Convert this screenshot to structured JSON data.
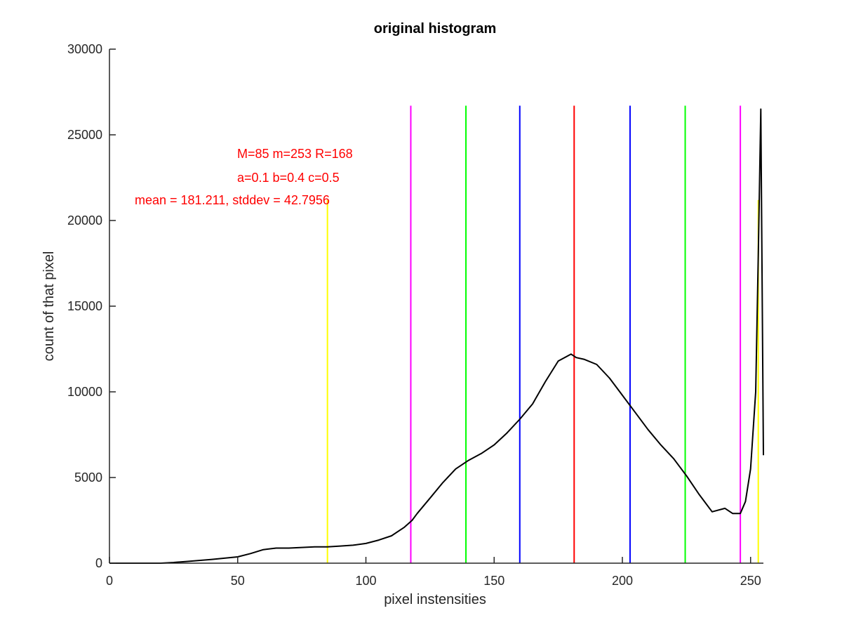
{
  "chart_data": {
    "type": "line",
    "title": "original histogram",
    "xlabel": "pixel instensities",
    "ylabel": "count of that pixel",
    "xlim": [
      0,
      255
    ],
    "ylim": [
      0,
      30000
    ],
    "xticks": [
      0,
      50,
      100,
      150,
      200,
      250
    ],
    "yticks": [
      0,
      5000,
      10000,
      15000,
      20000,
      25000,
      30000
    ],
    "grid": false,
    "series": [
      {
        "color": "#000000",
        "x": [
          0,
          10,
          20,
          25,
          30,
          40,
          50,
          55,
          60,
          65,
          70,
          75,
          80,
          85,
          90,
          95,
          100,
          105,
          110,
          115,
          118,
          120,
          125,
          130,
          135,
          140,
          145,
          150,
          155,
          160,
          165,
          170,
          175,
          180,
          182,
          185,
          190,
          195,
          200,
          205,
          210,
          215,
          220,
          225,
          230,
          235,
          240,
          243,
          246,
          248,
          250,
          252,
          253,
          254,
          255
        ],
        "y": [
          0,
          0,
          0,
          40,
          100,
          220,
          370,
          560,
          790,
          880,
          880,
          920,
          950,
          950,
          1000,
          1050,
          1150,
          1350,
          1600,
          2100,
          2500,
          2900,
          3800,
          4700,
          5500,
          6000,
          6400,
          6900,
          7600,
          8400,
          9300,
          10600,
          11800,
          12200,
          12000,
          11900,
          11600,
          10800,
          9800,
          8800,
          7800,
          6900,
          6100,
          5100,
          4000,
          3000,
          3200,
          2900,
          2900,
          3600,
          5500,
          10000,
          18000,
          26500,
          6300
        ]
      }
    ],
    "vlines": [
      {
        "x": 85,
        "ymax": 21200,
        "color": "#ffff00"
      },
      {
        "x": 117.5,
        "ymax": 26700,
        "color": "#ff00ff"
      },
      {
        "x": 139,
        "ymax": 26700,
        "color": "#00ff00"
      },
      {
        "x": 160,
        "ymax": 26700,
        "color": "#0000ff"
      },
      {
        "x": 181.2,
        "ymax": 26700,
        "color": "#ff0000"
      },
      {
        "x": 203,
        "ymax": 26700,
        "color": "#0000ff"
      },
      {
        "x": 224.5,
        "ymax": 26700,
        "color": "#00ff00"
      },
      {
        "x": 246,
        "ymax": 26700,
        "color": "#ff00ff"
      },
      {
        "x": 253,
        "ymax": 21200,
        "color": "#ffff00"
      }
    ],
    "annotations": [
      {
        "text": "M=85 m=253 R=168",
        "color": "#ff0000"
      },
      {
        "text": "a=0.1 b=0.4 c=0.5",
        "color": "#ff0000"
      },
      {
        "text": "mean = 181.211, stddev = 42.7956",
        "color": "#ff0000"
      }
    ]
  }
}
